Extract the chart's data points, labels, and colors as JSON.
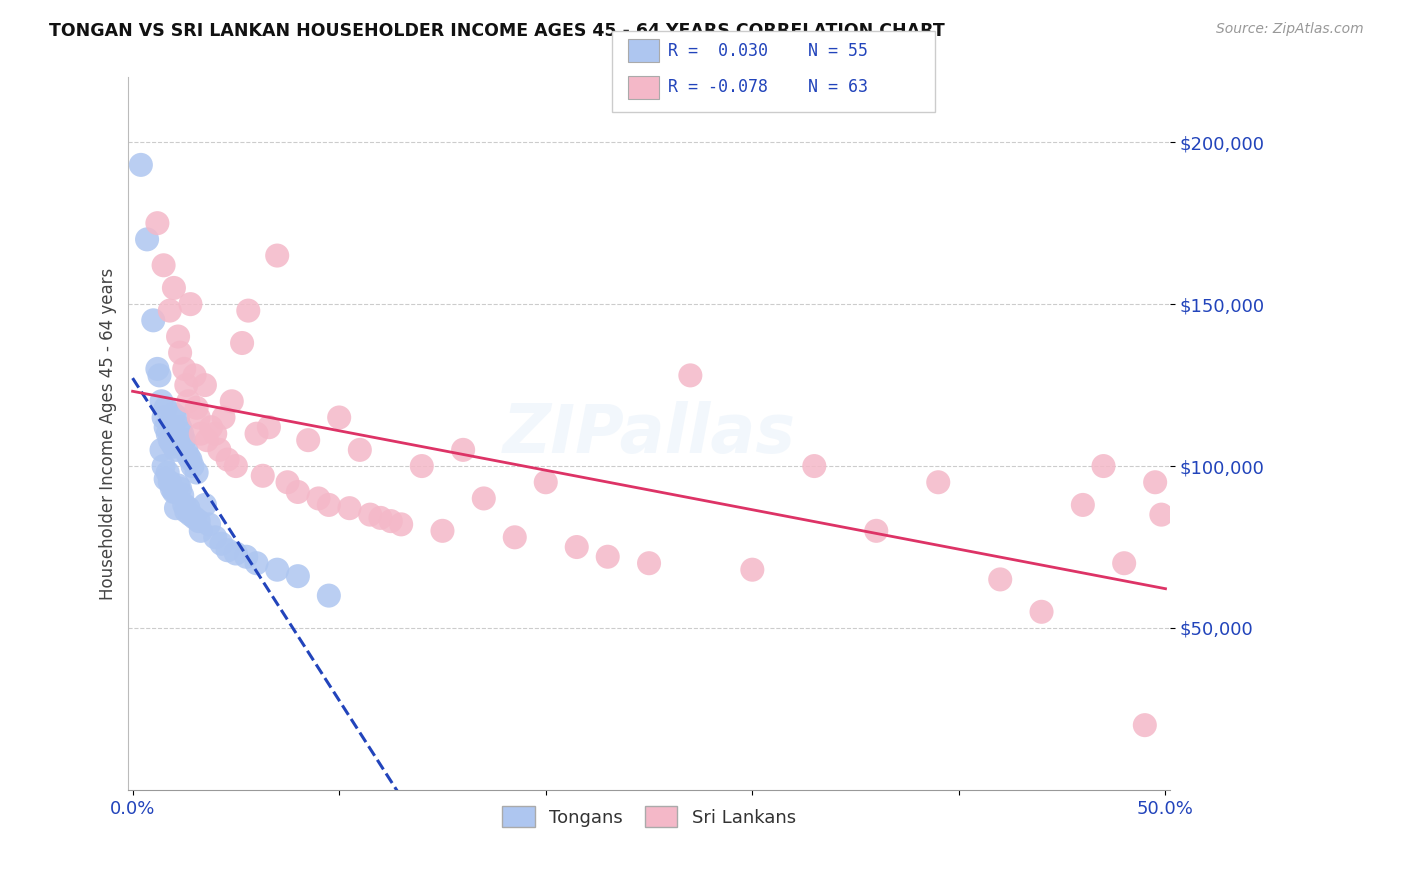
{
  "title": "TONGAN VS SRI LANKAN HOUSEHOLDER INCOME AGES 45 - 64 YEARS CORRELATION CHART",
  "source": "Source: ZipAtlas.com",
  "ylabel": "Householder Income Ages 45 - 64 years",
  "ytick_labels": [
    "$50,000",
    "$100,000",
    "$150,000",
    "$200,000"
  ],
  "ytick_values": [
    50000,
    100000,
    150000,
    200000
  ],
  "xlim": [
    -0.002,
    0.502
  ],
  "ylim": [
    0,
    220000
  ],
  "tongan_R": 0.03,
  "tongan_N": 55,
  "srilankan_R": -0.078,
  "srilankan_N": 63,
  "tongan_color": "#aec6f0",
  "srilankan_color": "#f4b8c8",
  "tongan_line_color": "#2244bb",
  "srilankan_line_color": "#dd3366",
  "background_color": "#ffffff",
  "grid_color": "#cccccc",
  "watermark": "ZIPallas",
  "legend_R1": "R =  0.030",
  "legend_N1": "N = 55",
  "legend_R2": "R = -0.078",
  "legend_N2": "N = 63",
  "label_tongans": "Tongans",
  "label_srilankans": "Sri Lankans",
  "tongan_x": [
    0.004,
    0.007,
    0.01,
    0.012,
    0.013,
    0.014,
    0.014,
    0.015,
    0.015,
    0.016,
    0.016,
    0.016,
    0.017,
    0.017,
    0.018,
    0.018,
    0.019,
    0.019,
    0.02,
    0.02,
    0.02,
    0.021,
    0.021,
    0.021,
    0.022,
    0.022,
    0.022,
    0.023,
    0.023,
    0.024,
    0.024,
    0.025,
    0.025,
    0.026,
    0.026,
    0.027,
    0.027,
    0.028,
    0.028,
    0.029,
    0.03,
    0.031,
    0.032,
    0.033,
    0.035,
    0.037,
    0.04,
    0.043,
    0.046,
    0.05,
    0.055,
    0.06,
    0.07,
    0.08,
    0.095
  ],
  "tongan_y": [
    193000,
    170000,
    145000,
    130000,
    128000,
    120000,
    105000,
    115000,
    100000,
    118000,
    112000,
    96000,
    110000,
    98000,
    108000,
    95000,
    107000,
    93000,
    106000,
    92000,
    116000,
    105000,
    92000,
    87000,
    115000,
    108000,
    94000,
    112000,
    93000,
    110000,
    91000,
    108000,
    88000,
    105000,
    86000,
    103000,
    87000,
    102000,
    85000,
    100000,
    84000,
    98000,
    83000,
    80000,
    88000,
    82000,
    78000,
    76000,
    74000,
    73000,
    72000,
    70000,
    68000,
    66000,
    60000
  ],
  "srilankan_x": [
    0.012,
    0.015,
    0.018,
    0.02,
    0.022,
    0.023,
    0.025,
    0.026,
    0.027,
    0.028,
    0.03,
    0.031,
    0.032,
    0.033,
    0.035,
    0.036,
    0.038,
    0.04,
    0.042,
    0.044,
    0.046,
    0.048,
    0.05,
    0.053,
    0.056,
    0.06,
    0.063,
    0.066,
    0.07,
    0.075,
    0.08,
    0.085,
    0.09,
    0.095,
    0.1,
    0.105,
    0.11,
    0.115,
    0.12,
    0.125,
    0.13,
    0.14,
    0.15,
    0.16,
    0.17,
    0.185,
    0.2,
    0.215,
    0.23,
    0.25,
    0.27,
    0.3,
    0.33,
    0.36,
    0.39,
    0.42,
    0.44,
    0.46,
    0.47,
    0.48,
    0.49,
    0.495,
    0.498
  ],
  "srilankan_y": [
    175000,
    162000,
    148000,
    155000,
    140000,
    135000,
    130000,
    125000,
    120000,
    150000,
    128000,
    118000,
    115000,
    110000,
    125000,
    108000,
    112000,
    110000,
    105000,
    115000,
    102000,
    120000,
    100000,
    138000,
    148000,
    110000,
    97000,
    112000,
    165000,
    95000,
    92000,
    108000,
    90000,
    88000,
    115000,
    87000,
    105000,
    85000,
    84000,
    83000,
    82000,
    100000,
    80000,
    105000,
    90000,
    78000,
    95000,
    75000,
    72000,
    70000,
    128000,
    68000,
    100000,
    80000,
    95000,
    65000,
    55000,
    88000,
    100000,
    70000,
    20000,
    95000,
    85000
  ]
}
